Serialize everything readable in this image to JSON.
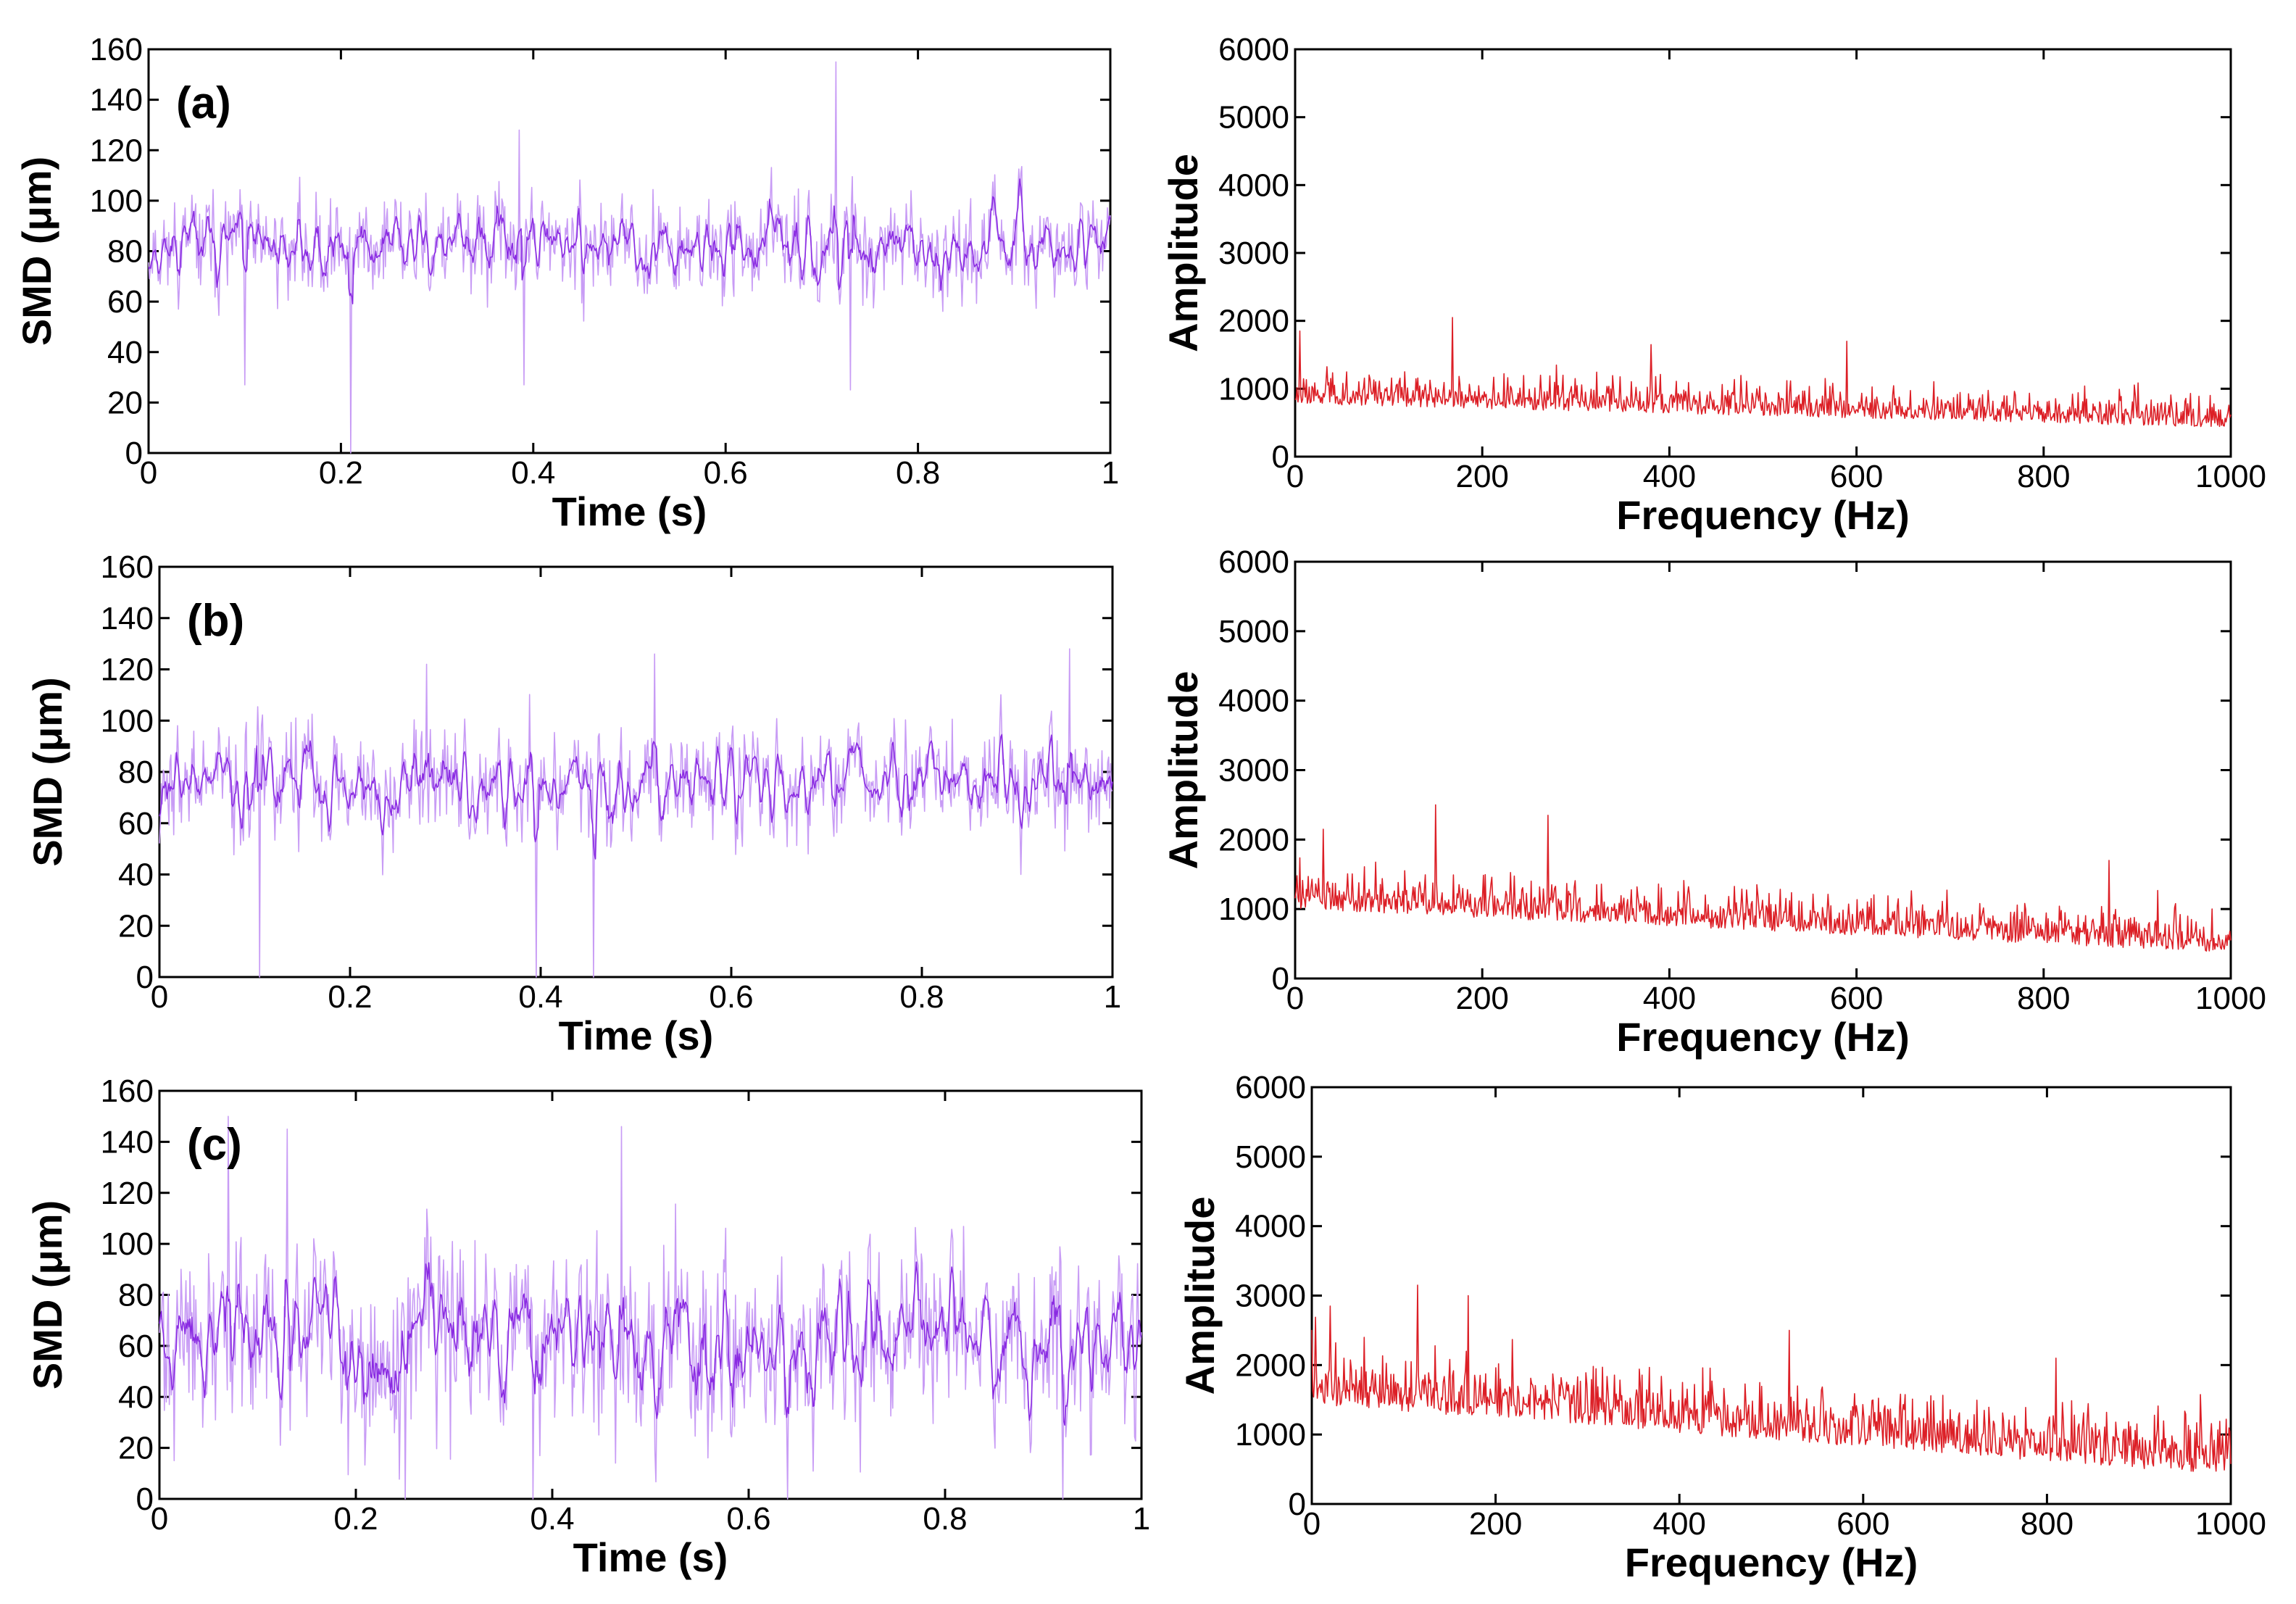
{
  "figure": {
    "panel_labels": [
      "(a)",
      "(b)",
      "(c)"
    ]
  },
  "colors": {
    "smd_line": "#8a2be2",
    "smd_light": "#c89cf5",
    "fft_line": "#dc1f26"
  },
  "chart_data": [
    {
      "id": "a-time",
      "type": "line",
      "panel_label": "(a)",
      "xlabel": "Time (s)",
      "ylabel": "SMD (μm)",
      "xlim": [
        0,
        1
      ],
      "ylim": [
        0,
        160
      ],
      "xticks": [
        0,
        0.2,
        0.4,
        0.6,
        0.8,
        1
      ],
      "xticklabels": [
        "0",
        "0.2",
        "0.4",
        "0.6",
        "0.8",
        "1"
      ],
      "yticks": [
        0,
        20,
        40,
        60,
        80,
        100,
        120,
        140,
        160
      ],
      "yticklabels": [
        "0",
        "20",
        "40",
        "60",
        "80",
        "100",
        "120",
        "140",
        "160"
      ],
      "signal": {
        "mean": 82,
        "spread": 13,
        "n": 1000,
        "seed": 11
      },
      "spikes": [
        {
          "x": 0.21,
          "y": 0
        },
        {
          "x": 0.715,
          "y": 155
        },
        {
          "x": 0.385,
          "y": 128
        },
        {
          "x": 0.1,
          "y": 27
        },
        {
          "x": 0.39,
          "y": 27
        },
        {
          "x": 0.73,
          "y": 25
        }
      ]
    },
    {
      "id": "a-freq",
      "type": "line",
      "xlabel": "Frequency (Hz)",
      "ylabel": "Amplitude",
      "xlim": [
        0,
        1000
      ],
      "ylim": [
        0,
        6000
      ],
      "xticks": [
        0,
        200,
        400,
        600,
        800,
        1000
      ],
      "xticklabels": [
        "0",
        "200",
        "400",
        "600",
        "800",
        "1000"
      ],
      "yticks": [
        0,
        1000,
        2000,
        3000,
        4000,
        5000,
        6000
      ],
      "yticklabels": [
        "0",
        "1000",
        "2000",
        "3000",
        "4000",
        "5000",
        "6000"
      ],
      "spectrum": {
        "base_start": 900,
        "base_end": 550,
        "spread": 350,
        "n": 1000,
        "seed": 23
      },
      "peaks": [
        {
          "x": 168,
          "y": 2050
        },
        {
          "x": 590,
          "y": 1700
        },
        {
          "x": 380,
          "y": 1650
        },
        {
          "x": 5,
          "y": 1850
        }
      ]
    },
    {
      "id": "b-time",
      "type": "line",
      "panel_label": "(b)",
      "xlabel": "Time (s)",
      "ylabel": "SMD (μm)",
      "xlim": [
        0,
        1
      ],
      "ylim": [
        0,
        160
      ],
      "xticks": [
        0,
        0.2,
        0.4,
        0.6,
        0.8,
        1
      ],
      "xticklabels": [
        "0",
        "0.2",
        "0.4",
        "0.6",
        "0.8",
        "1"
      ],
      "yticks": [
        0,
        20,
        40,
        60,
        80,
        100,
        120,
        140,
        160
      ],
      "yticklabels": [
        "0",
        "20",
        "40",
        "60",
        "80",
        "100",
        "120",
        "140",
        "160"
      ],
      "signal": {
        "mean": 76,
        "spread": 15,
        "n": 1000,
        "seed": 37
      },
      "spikes": [
        {
          "x": 0.105,
          "y": 0
        },
        {
          "x": 0.395,
          "y": 0
        },
        {
          "x": 0.455,
          "y": 0
        },
        {
          "x": 0.52,
          "y": 126
        },
        {
          "x": 0.955,
          "y": 128
        },
        {
          "x": 0.28,
          "y": 122
        }
      ]
    },
    {
      "id": "b-freq",
      "type": "line",
      "xlabel": "Frequency (Hz)",
      "ylabel": "Amplitude",
      "xlim": [
        0,
        1000
      ],
      "ylim": [
        0,
        6000
      ],
      "xticks": [
        0,
        200,
        400,
        600,
        800,
        1000
      ],
      "xticklabels": [
        "0",
        "200",
        "400",
        "600",
        "800",
        "1000"
      ],
      "yticks": [
        0,
        1000,
        2000,
        3000,
        4000,
        5000,
        6000
      ],
      "yticklabels": [
        "0",
        "1000",
        "2000",
        "3000",
        "4000",
        "5000",
        "6000"
      ],
      "spectrum": {
        "base_start": 1150,
        "base_end": 520,
        "spread": 420,
        "n": 1000,
        "seed": 59
      },
      "peaks": [
        {
          "x": 150,
          "y": 2500
        },
        {
          "x": 270,
          "y": 2350
        },
        {
          "x": 30,
          "y": 2150
        },
        {
          "x": 870,
          "y": 1700
        }
      ]
    },
    {
      "id": "c-time",
      "type": "line",
      "panel_label": "(c)",
      "xlabel": "Time (s)",
      "ylabel": "SMD (μm)",
      "xlim": [
        0,
        1
      ],
      "ylim": [
        0,
        160
      ],
      "xticks": [
        0,
        0.2,
        0.4,
        0.6,
        0.8,
        1
      ],
      "xticklabels": [
        "0",
        "0.2",
        "0.4",
        "0.6",
        "0.8",
        "1"
      ],
      "yticks": [
        0,
        20,
        40,
        60,
        80,
        100,
        120,
        140,
        160
      ],
      "yticklabels": [
        "0",
        "20",
        "40",
        "60",
        "80",
        "100",
        "120",
        "140",
        "160"
      ],
      "signal": {
        "mean": 62,
        "spread": 25,
        "n": 1000,
        "seed": 71
      },
      "spikes": [
        {
          "x": 0.13,
          "y": 145
        },
        {
          "x": 0.47,
          "y": 146
        },
        {
          "x": 0.07,
          "y": 150
        },
        {
          "x": 0.25,
          "y": 0
        },
        {
          "x": 0.38,
          "y": 0
        },
        {
          "x": 0.64,
          "y": 0
        },
        {
          "x": 0.92,
          "y": 0
        }
      ]
    },
    {
      "id": "c-freq",
      "type": "line",
      "xlabel": "Frequency (Hz)",
      "ylabel": "Amplitude",
      "xlim": [
        0,
        1000
      ],
      "ylim": [
        0,
        6000
      ],
      "xticks": [
        0,
        200,
        400,
        600,
        800,
        1000
      ],
      "xticklabels": [
        "0",
        "200",
        "400",
        "600",
        "800",
        "1000"
      ],
      "yticks": [
        0,
        1000,
        2000,
        3000,
        4000,
        5000,
        6000
      ],
      "yticklabels": [
        "0",
        "1000",
        "2000",
        "3000",
        "4000",
        "5000",
        "6000"
      ],
      "spectrum": {
        "base_start": 1650,
        "base_end": 620,
        "spread": 600,
        "n": 1000,
        "seed": 97
      },
      "peaks": [
        {
          "x": 115,
          "y": 3150
        },
        {
          "x": 170,
          "y": 3000
        },
        {
          "x": 520,
          "y": 2500
        },
        {
          "x": 810,
          "y": 2100
        },
        {
          "x": 20,
          "y": 2850
        }
      ]
    }
  ]
}
